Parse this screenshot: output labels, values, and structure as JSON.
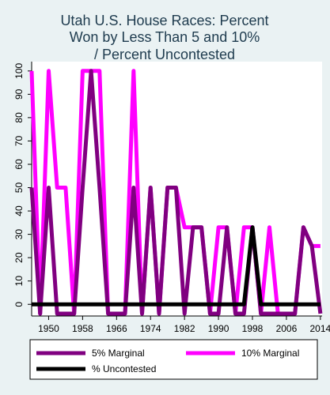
{
  "chart_data": {
    "type": "line",
    "title": [
      "Utah U.S. House Races: Percent",
      "Won by Less Than 5 and 10%",
      "/ Percent Uncontested"
    ],
    "x_ticks": [
      "1950",
      "1958",
      "1966",
      "1974",
      "1982",
      "1990",
      "1998",
      "2006",
      "2014"
    ],
    "y_ticks": [
      "0",
      "10",
      "20",
      "30",
      "40",
      "50",
      "60",
      "70",
      "80",
      "90",
      "100"
    ],
    "xlim": [
      1946,
      2014.4
    ],
    "ylim": [
      -5,
      104
    ],
    "grid": false,
    "legend_placement": "bottom",
    "series": [
      {
        "name": "5% Marginal",
        "color": "#800080",
        "x": [
          1946,
          1948,
          1950,
          1952,
          1954,
          1956,
          1958,
          1960,
          1962,
          1964,
          1966,
          1968,
          1970,
          1972,
          1974,
          1976,
          1978,
          1980,
          1982,
          1984,
          1986,
          1988,
          1990,
          1992,
          1994,
          1996,
          1998,
          2000,
          2002,
          2004,
          2006,
          2008,
          2010,
          2012,
          2014
        ],
        "values": [
          50,
          -4,
          50,
          -4,
          -4,
          -4,
          50,
          100,
          50,
          -4,
          -4,
          -4,
          50,
          -4,
          50,
          -4,
          50,
          50,
          -4,
          33,
          33,
          -4,
          -4,
          33,
          -4,
          -4,
          33,
          -4,
          -4,
          -4,
          -4,
          -4,
          33,
          25,
          -4
        ]
      },
      {
        "name": "10% Marginal",
        "color": "#ff00ff",
        "x": [
          1946,
          1948,
          1950,
          1952,
          1954,
          1956,
          1958,
          1960,
          1962,
          1964,
          1966,
          1968,
          1970,
          1972,
          1974,
          1976,
          1978,
          1980,
          1982,
          1984,
          1986,
          1988,
          1990,
          1992,
          1994,
          1996,
          1998,
          2000,
          2002,
          2004,
          2006,
          2008,
          2010,
          2012,
          2014
        ],
        "values": [
          100,
          -4,
          100,
          50,
          50,
          -4,
          100,
          100,
          100,
          -4,
          -4,
          -4,
          100,
          -4,
          50,
          -4,
          50,
          50,
          33,
          33,
          33,
          -4,
          33,
          33,
          -4,
          33,
          33,
          -4,
          33,
          -4,
          -4,
          -4,
          33,
          25,
          25
        ]
      },
      {
        "name": "% Uncontested",
        "color": "#000000",
        "x": [
          1946,
          1948,
          1950,
          1952,
          1954,
          1956,
          1958,
          1960,
          1962,
          1964,
          1966,
          1968,
          1970,
          1972,
          1974,
          1976,
          1978,
          1980,
          1982,
          1984,
          1986,
          1988,
          1990,
          1992,
          1994,
          1996,
          1998,
          2000,
          2002,
          2004,
          2006,
          2008,
          2010,
          2012,
          2014
        ],
        "values": [
          0,
          0,
          0,
          0,
          0,
          0,
          0,
          0,
          0,
          0,
          0,
          0,
          0,
          0,
          0,
          0,
          0,
          0,
          0,
          0,
          0,
          0,
          0,
          0,
          0,
          0,
          33,
          0,
          0,
          0,
          0,
          0,
          0,
          0,
          0
        ]
      }
    ],
    "legend": [
      "5% Marginal",
      "10% Marginal",
      "% Uncontested"
    ]
  },
  "colors": {
    "background": "#eaf2f3",
    "plot_background": "#ffffff",
    "title_color": "#1e3b4e"
  }
}
